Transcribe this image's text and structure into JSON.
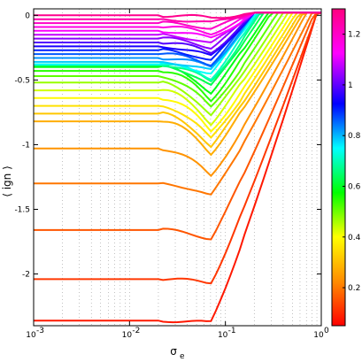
{
  "chart_data": {
    "type": "line",
    "xlabel": "σ",
    "xlabel_sub": "e",
    "ylabel": "⟨ ign ⟩",
    "xscale": "log",
    "xlim": [
      0.001,
      1
    ],
    "ylim": [
      -2.4,
      0.05
    ],
    "grid": "dotted, x-axis major and minor",
    "x_tick_labels": [
      {
        "base": "10",
        "exp": "-3",
        "value": 0.001
      },
      {
        "base": "10",
        "exp": "-2",
        "value": 0.01
      },
      {
        "base": "10",
        "exp": "-1",
        "value": 0.1
      },
      {
        "base": "10",
        "exp": "0",
        "value": 1
      }
    ],
    "y_ticks": [
      0,
      -0.5,
      -1,
      -1.5,
      -2
    ],
    "y_tick_labels": [
      "0",
      "-0.5",
      "-1",
      "-1.5",
      "-2"
    ],
    "colorbar": {
      "range": [
        0.05,
        1.3
      ],
      "ticks": [
        0.2,
        0.4,
        0.6,
        0.8,
        1,
        1.2
      ],
      "tick_labels": [
        "0.2",
        "0.4",
        "0.6",
        "0.8",
        "1",
        "1.2"
      ],
      "colormap": [
        "#ff0000",
        "#ff8c00",
        "#ffff00",
        "#00ff00",
        "#00ffff",
        "#0000ff",
        "#ff00ff",
        "#ff007f"
      ]
    },
    "series": [
      {
        "param": 0.08,
        "baseline": -2.36,
        "dip": -2.38,
        "x_at_zero": 0.9
      },
      {
        "param": 0.12,
        "baseline": -2.04,
        "dip": -2.07,
        "x_at_zero": 0.9
      },
      {
        "param": 0.16,
        "baseline": -1.66,
        "dip": -1.73,
        "x_at_zero": 0.85
      },
      {
        "param": 0.2,
        "baseline": -1.3,
        "dip": -1.4,
        "x_at_zero": 0.8
      },
      {
        "param": 0.24,
        "baseline": -1.03,
        "dip": -1.25,
        "x_at_zero": 0.7
      },
      {
        "param": 0.28,
        "baseline": -0.82,
        "dip": -1.07,
        "x_at_zero": 0.65
      },
      {
        "param": 0.32,
        "baseline": -0.76,
        "dip": -1.02,
        "x_at_zero": 0.6
      },
      {
        "param": 0.36,
        "baseline": -0.7,
        "dip": -0.96,
        "x_at_zero": 0.55
      },
      {
        "param": 0.4,
        "baseline": -0.64,
        "dip": -0.9,
        "x_at_zero": 0.5
      },
      {
        "param": 0.44,
        "baseline": -0.58,
        "dip": -0.84,
        "x_at_zero": 0.45
      },
      {
        "param": 0.48,
        "baseline": -0.52,
        "dip": -0.78,
        "x_at_zero": 0.4
      },
      {
        "param": 0.52,
        "baseline": -0.47,
        "dip": -0.72,
        "x_at_zero": 0.35
      },
      {
        "param": 0.56,
        "baseline": -0.43,
        "dip": -0.66,
        "x_at_zero": 0.3
      },
      {
        "param": 0.6,
        "baseline": -0.4,
        "dip": -0.6,
        "x_at_zero": 0.28
      },
      {
        "param": 0.64,
        "baseline": -0.39,
        "dip": -0.55,
        "x_at_zero": 0.25
      },
      {
        "param": 0.68,
        "baseline": -0.38,
        "dip": -0.52,
        "x_at_zero": 0.23
      },
      {
        "param": 0.72,
        "baseline": -0.38,
        "dip": -0.49,
        "x_at_zero": 0.22
      },
      {
        "param": 0.76,
        "baseline": -0.38,
        "dip": -0.45,
        "x_at_zero": 0.21
      },
      {
        "param": 0.8,
        "baseline": -0.36,
        "dip": -0.43,
        "x_at_zero": 0.2
      },
      {
        "param": 0.84,
        "baseline": -0.33,
        "dip": -0.4,
        "x_at_zero": 0.2
      },
      {
        "param": 0.88,
        "baseline": -0.3,
        "dip": -0.38,
        "x_at_zero": 0.2
      },
      {
        "param": 0.92,
        "baseline": -0.27,
        "dip": -0.35,
        "x_at_zero": 0.2
      },
      {
        "param": 0.96,
        "baseline": -0.24,
        "dip": -0.32,
        "x_at_zero": 0.2
      },
      {
        "param": 1.0,
        "baseline": -0.21,
        "dip": -0.29,
        "x_at_zero": 0.2
      },
      {
        "param": 1.04,
        "baseline": -0.18,
        "dip": -0.25,
        "x_at_zero": 0.2
      },
      {
        "param": 1.08,
        "baseline": -0.15,
        "dip": -0.22,
        "x_at_zero": 0.2
      },
      {
        "param": 1.12,
        "baseline": -0.12,
        "dip": -0.18,
        "x_at_zero": 0.2
      },
      {
        "param": 1.16,
        "baseline": -0.09,
        "dip": -0.14,
        "x_at_zero": 0.2
      },
      {
        "param": 1.2,
        "baseline": -0.06,
        "dip": -0.1,
        "x_at_zero": 0.2
      },
      {
        "param": 1.24,
        "baseline": -0.03,
        "dip": -0.06,
        "x_at_zero": 0.2
      },
      {
        "param": 1.28,
        "baseline": 0.0,
        "dip": -0.02,
        "x_at_zero": 0.2
      }
    ]
  }
}
